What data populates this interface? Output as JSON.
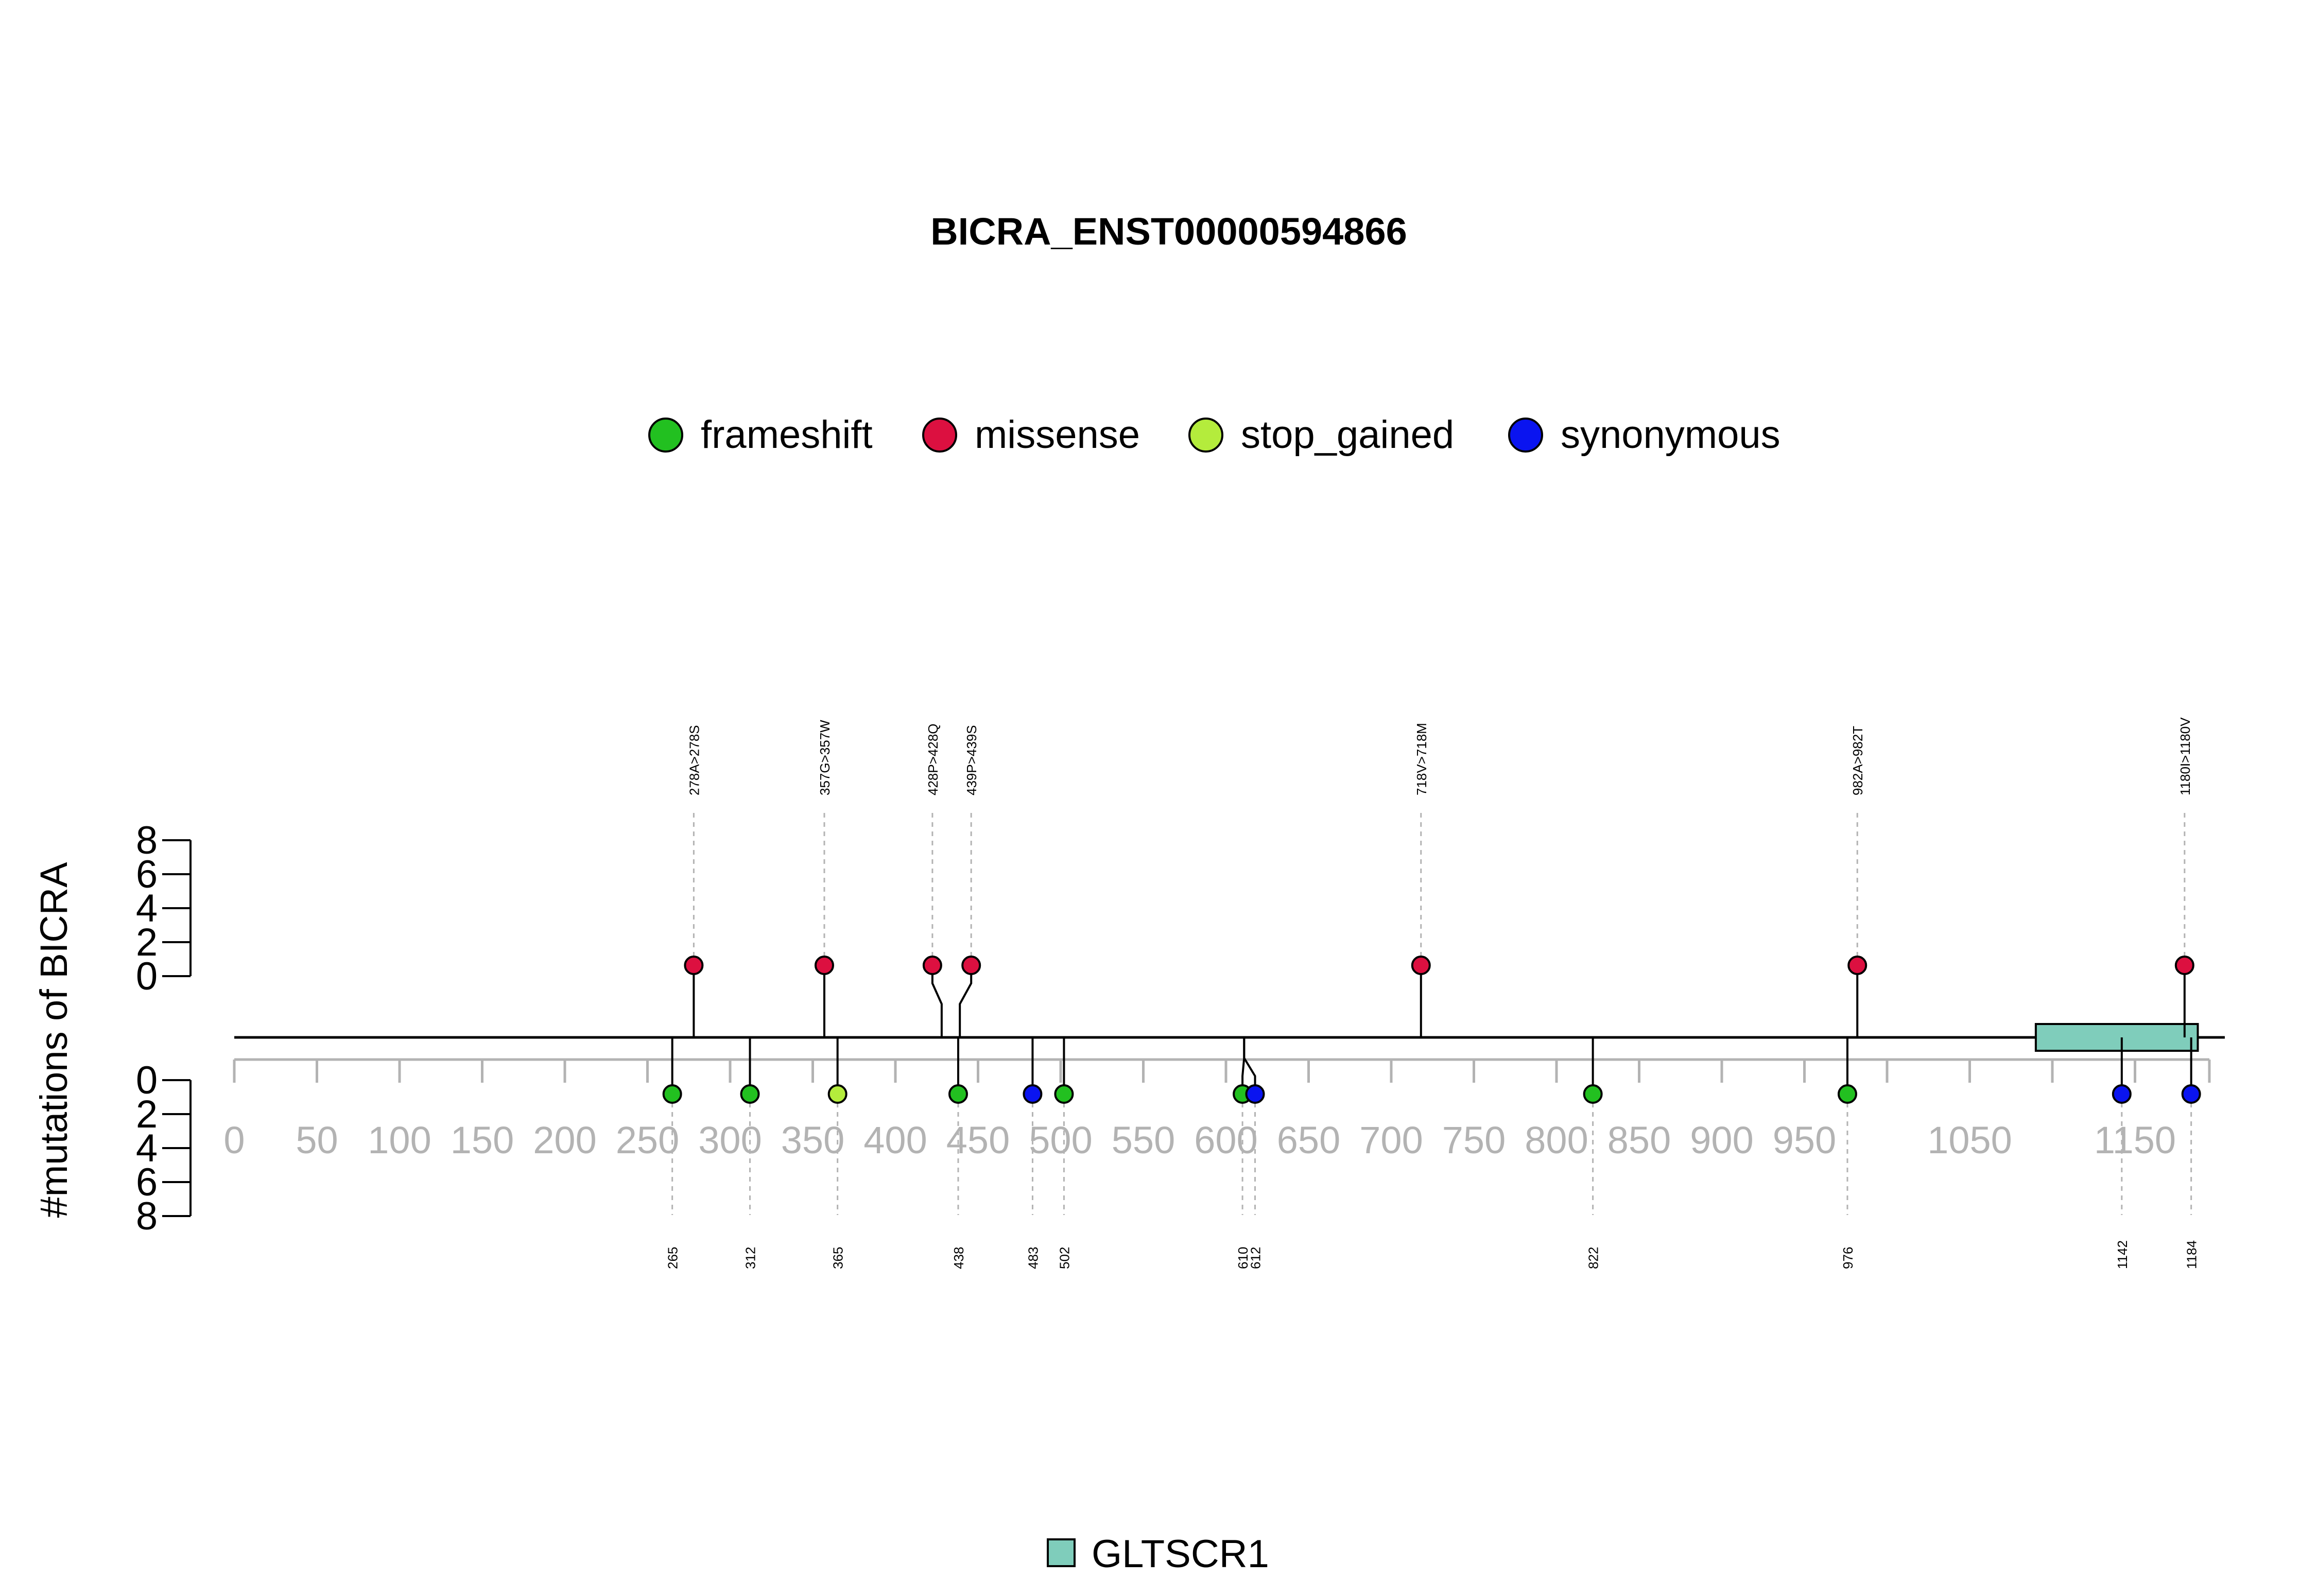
{
  "chart_data": {
    "type": "lollipop",
    "title": "BICRA_ENST00000594866",
    "ylabel": "#mutations of BICRA",
    "gene": "BICRA",
    "protein_length": 1195,
    "xlim": [
      0,
      1195
    ],
    "x_ticks": [
      0,
      50,
      100,
      150,
      200,
      250,
      300,
      350,
      400,
      450,
      500,
      550,
      600,
      650,
      700,
      750,
      800,
      850,
      900,
      950,
      1050,
      1150
    ],
    "x_minor_ticks": [
      1000,
      1100
    ],
    "y_ticks_top": [
      "8",
      "6",
      "4",
      "2",
      "0"
    ],
    "y_ticks_bottom": [
      "0",
      "2",
      "4",
      "6",
      "8"
    ],
    "y_ticks_values": [
      0,
      2,
      4,
      6,
      8
    ],
    "ylim": [
      0,
      8
    ],
    "legend": [
      {
        "name": "frameshift",
        "color": "#22c020"
      },
      {
        "name": "missense",
        "color": "#dc1040"
      },
      {
        "name": "stop_gained",
        "color": "#b4ec3c"
      },
      {
        "name": "synonymous",
        "color": "#0a14f0"
      }
    ],
    "top_mutations": [
      {
        "pos": 278,
        "label": "278A>278S",
        "type": "missense",
        "count": 1
      },
      {
        "pos": 357,
        "label": "357G>357W",
        "type": "missense",
        "count": 1
      },
      {
        "pos": 428,
        "label": "428P>428Q",
        "type": "missense",
        "count": 1
      },
      {
        "pos": 439,
        "label": "439P>439S",
        "type": "missense",
        "count": 1
      },
      {
        "pos": 718,
        "label": "718V>718M",
        "type": "missense",
        "count": 1
      },
      {
        "pos": 982,
        "label": "982A>982T",
        "type": "missense",
        "count": 1
      },
      {
        "pos": 1180,
        "label": "1180I>1180V",
        "type": "missense",
        "count": 1
      }
    ],
    "bottom_mutations": [
      {
        "pos": 265,
        "label": "265",
        "type": "frameshift",
        "count": 1
      },
      {
        "pos": 312,
        "label": "312",
        "type": "frameshift",
        "count": 1
      },
      {
        "pos": 365,
        "label": "365",
        "type": "stop_gained",
        "count": 1
      },
      {
        "pos": 438,
        "label": "438",
        "type": "frameshift",
        "count": 1
      },
      {
        "pos": 483,
        "label": "483",
        "type": "synonymous",
        "count": 1
      },
      {
        "pos": 502,
        "label": "502",
        "type": "frameshift",
        "count": 1
      },
      {
        "pos": 610,
        "label": "610",
        "type": "frameshift",
        "count": 1
      },
      {
        "pos": 612,
        "label": "612",
        "type": "synonymous",
        "count": 1
      },
      {
        "pos": 822,
        "label": "822",
        "type": "frameshift",
        "count": 1
      },
      {
        "pos": 976,
        "label": "976",
        "type": "frameshift",
        "count": 1
      },
      {
        "pos": 1142,
        "label": "1142",
        "type": "synonymous",
        "count": 1
      },
      {
        "pos": 1184,
        "label": "1184",
        "type": "synonymous",
        "count": 1
      }
    ],
    "domains": [
      {
        "name": "GLTSCR1",
        "start": 1090,
        "end": 1188,
        "color": "#7fcdbb"
      }
    ]
  }
}
